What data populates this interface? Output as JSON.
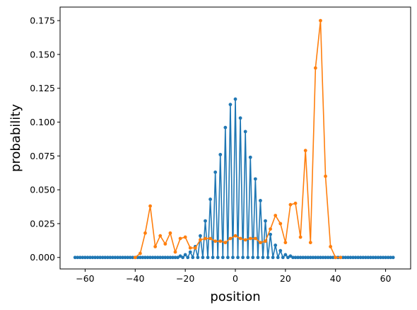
{
  "chart_data": {
    "type": "line",
    "xlabel": "position",
    "ylabel": "probability",
    "xlim": [
      -70,
      70
    ],
    "ylim": [
      -0.0085,
      0.185
    ],
    "x_ticks": [
      -60,
      -40,
      -20,
      0,
      20,
      40,
      60
    ],
    "y_ticks": [
      0.0,
      0.025,
      0.05,
      0.075,
      0.1,
      0.125,
      0.15,
      0.175
    ],
    "x_tick_labels": [
      "−60",
      "−40",
      "−20",
      "0",
      "20",
      "40",
      "60"
    ],
    "y_tick_labels": [
      "0.000",
      "0.025",
      "0.050",
      "0.075",
      "0.100",
      "0.125",
      "0.150",
      "0.175"
    ],
    "grid": false,
    "series": [
      {
        "color": "#1f77b4",
        "x": [
          -64,
          -63,
          -62,
          -61,
          -60,
          -59,
          -58,
          -57,
          -56,
          -55,
          -54,
          -53,
          -52,
          -51,
          -50,
          -49,
          -48,
          -47,
          -46,
          -45,
          -44,
          -43,
          -42,
          -41,
          -40,
          -39,
          -38,
          -37,
          -36,
          -35,
          -34,
          -33,
          -32,
          -31,
          -30,
          -29,
          -28,
          -27,
          -26,
          -25,
          -24,
          -23,
          -22,
          -21,
          -20,
          -19,
          -18,
          -17,
          -16,
          -15,
          -14,
          -13,
          -12,
          -11,
          -10,
          -9,
          -8,
          -7,
          -6,
          -5,
          -4,
          -3,
          -2,
          -1,
          0,
          1,
          2,
          3,
          4,
          5,
          6,
          7,
          8,
          9,
          10,
          11,
          12,
          13,
          14,
          15,
          16,
          17,
          18,
          19,
          20,
          21,
          22,
          23,
          24,
          25,
          26,
          27,
          28,
          29,
          30,
          31,
          32,
          33,
          34,
          35,
          36,
          37,
          38,
          39,
          40,
          41,
          42,
          43,
          44,
          45,
          46,
          47,
          48,
          49,
          50,
          51,
          52,
          53,
          54,
          55,
          56,
          57,
          58,
          59,
          60,
          61,
          62,
          63
        ],
        "y": [
          0,
          0,
          0,
          0,
          0,
          0,
          0,
          0,
          0,
          0,
          0,
          0,
          0,
          0,
          0,
          0,
          0,
          0,
          0,
          0,
          0,
          0,
          0,
          0,
          0,
          0,
          0,
          0,
          0,
          0,
          0,
          0,
          0,
          0,
          0,
          0,
          0,
          0,
          0,
          0,
          0,
          0,
          0.001,
          0,
          0.002,
          0,
          0.004,
          0,
          0.008,
          0,
          0.016,
          0,
          0.027,
          0,
          0.043,
          0,
          0.063,
          0,
          0.076,
          0,
          0.096,
          0,
          0.113,
          0,
          0.117,
          0,
          0.103,
          0,
          0.093,
          0,
          0.074,
          0,
          0.058,
          0,
          0.042,
          0,
          0.027,
          0,
          0.017,
          0,
          0.009,
          0,
          0.005,
          0,
          0.002,
          0,
          0.001,
          0,
          0,
          0,
          0,
          0,
          0,
          0,
          0,
          0,
          0,
          0,
          0,
          0,
          0,
          0,
          0,
          0,
          0,
          0,
          0,
          0,
          0,
          0,
          0,
          0,
          0,
          0,
          0,
          0,
          0,
          0,
          0,
          0,
          0,
          0,
          0,
          0,
          0,
          0,
          0,
          0
        ]
      },
      {
        "color": "#ff7f0e",
        "x": [
          -40,
          -38,
          -36,
          -34,
          -32,
          -30,
          -28,
          -26,
          -24,
          -22,
          -20,
          -18,
          -16,
          -14,
          -12,
          -10,
          -8,
          -6,
          -4,
          -2,
          0,
          2,
          4,
          6,
          8,
          10,
          12,
          14,
          16,
          18,
          20,
          22,
          24,
          26,
          28,
          30,
          32,
          34,
          36,
          38,
          40,
          42
        ],
        "y": [
          0,
          0.003,
          0.018,
          0.038,
          0.008,
          0.016,
          0.01,
          0.018,
          0.004,
          0.014,
          0.015,
          0.007,
          0.007,
          0.013,
          0.014,
          0.014,
          0.012,
          0.012,
          0.011,
          0.014,
          0.016,
          0.014,
          0.013,
          0.014,
          0.014,
          0.011,
          0.012,
          0.021,
          0.031,
          0.025,
          0.011,
          0.039,
          0.04,
          0.015,
          0.079,
          0.011,
          0.14,
          0.175,
          0.06,
          0.008,
          0,
          0
        ]
      }
    ]
  }
}
